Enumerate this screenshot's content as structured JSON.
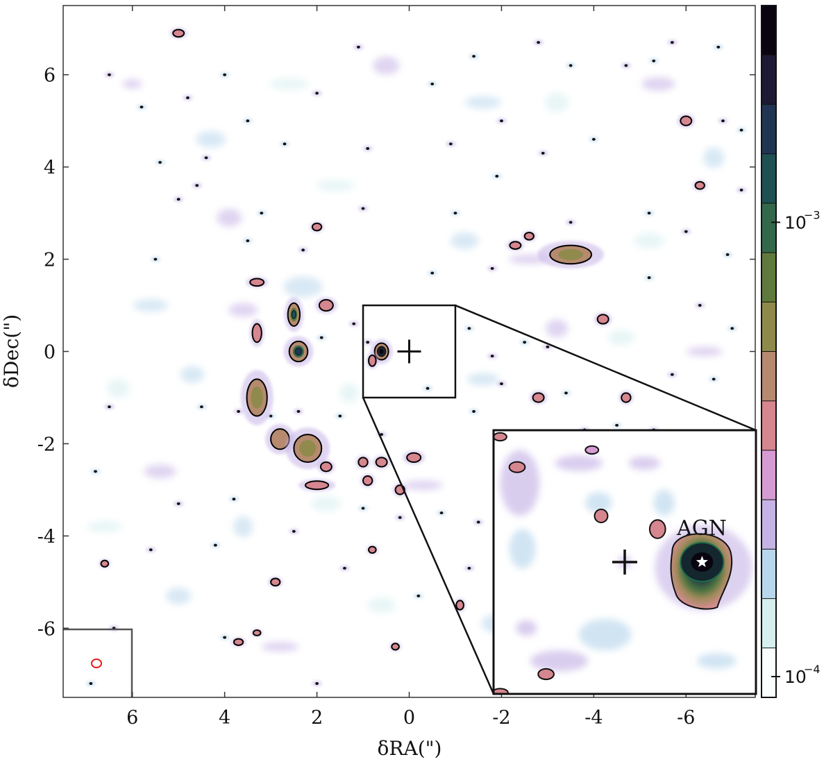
{
  "chart_data": {
    "type": "heatmap",
    "title": "",
    "xlabel": "δRA(\")",
    "ylabel": "δDec(\")",
    "xlim": [
      7.5,
      -7.5
    ],
    "ylim": [
      -7.5,
      7.5
    ],
    "x_ticks": [
      6,
      4,
      2,
      0,
      -2,
      -4,
      -6
    ],
    "x_tick_labels": [
      "6",
      "4",
      "2",
      "0",
      "-2",
      "-4",
      "-6"
    ],
    "y_ticks": [
      6,
      4,
      2,
      0,
      -2,
      -4,
      -6
    ],
    "y_tick_labels": [
      "6",
      "4",
      "2",
      "0",
      "-2",
      "-4",
      "-6"
    ],
    "grid": false,
    "colorbar": {
      "scale": "log",
      "range": [
        9e-05,
        0.003
      ],
      "ticks": [
        0.0001,
        0.001
      ],
      "tick_base": [
        "10",
        "10"
      ],
      "tick_exponents": [
        "−4",
        "−3"
      ],
      "levels": 12,
      "colors": [
        "#fbfefe",
        "#d6eeee",
        "#b9d7ec",
        "#c6b3e6",
        "#d79bd3",
        "#d6868f",
        "#b58a6e",
        "#8f8a4b",
        "#5f7a3c",
        "#34684a",
        "#1f5052",
        "#213553",
        "#1d1a33",
        "#0a0410"
      ]
    },
    "contour_color": "#000000",
    "center_marker": {
      "x": 0,
      "y": 0,
      "symbol": "+"
    },
    "beam": {
      "color": "#e51b1b"
    },
    "zoom_box": {
      "x_range": [
        1,
        -1
      ],
      "y_range": [
        -1,
        1
      ]
    },
    "inset": {
      "annotation": "AGN",
      "agn_marker": {
        "symbol": "star",
        "color": "#ffffff"
      }
    },
    "sources": [
      {
        "x": 0.6,
        "y": 0.0,
        "rx": 0.15,
        "ry": 0.18,
        "level": 12
      },
      {
        "x": 2.5,
        "y": 0.8,
        "rx": 0.13,
        "ry": 0.25,
        "level": 8
      },
      {
        "x": 2.4,
        "y": 0.0,
        "rx": 0.2,
        "ry": 0.22,
        "level": 9
      },
      {
        "x": 3.3,
        "y": -1.0,
        "rx": 0.22,
        "ry": 0.4,
        "level": 7
      },
      {
        "x": 2.8,
        "y": -1.9,
        "rx": 0.2,
        "ry": 0.22,
        "level": 6
      },
      {
        "x": 2.2,
        "y": -2.1,
        "rx": 0.3,
        "ry": 0.3,
        "level": 7
      },
      {
        "x": -3.5,
        "y": 2.1,
        "rx": 0.45,
        "ry": 0.2,
        "level": 7
      },
      {
        "x": 3.3,
        "y": 0.4,
        "rx": 0.1,
        "ry": 0.2,
        "level": 5
      },
      {
        "x": 3.3,
        "y": 1.5,
        "rx": 0.15,
        "ry": 0.08,
        "level": 5
      },
      {
        "x": -2.3,
        "y": 2.3,
        "rx": 0.12,
        "ry": 0.08,
        "level": 5
      },
      {
        "x": -2.6,
        "y": 2.5,
        "rx": 0.1,
        "ry": 0.08,
        "level": 5
      },
      {
        "x": -4.2,
        "y": 0.7,
        "rx": 0.12,
        "ry": 0.1,
        "level": 5
      },
      {
        "x": -4.7,
        "y": -1.0,
        "rx": 0.1,
        "ry": 0.1,
        "level": 5
      },
      {
        "x": -2.8,
        "y": -1.0,
        "rx": 0.12,
        "ry": 0.1,
        "level": 5
      },
      {
        "x": -0.1,
        "y": -2.3,
        "rx": 0.15,
        "ry": 0.1,
        "level": 5
      },
      {
        "x": 0.6,
        "y": -2.4,
        "rx": 0.12,
        "ry": 0.1,
        "level": 5
      },
      {
        "x": 1.0,
        "y": -2.4,
        "rx": 0.1,
        "ry": 0.1,
        "level": 5
      },
      {
        "x": 2.0,
        "y": -2.9,
        "rx": 0.25,
        "ry": 0.09,
        "level": 5
      },
      {
        "x": 1.8,
        "y": -2.5,
        "rx": 0.12,
        "ry": 0.1,
        "level": 5
      },
      {
        "x": 0.9,
        "y": -2.8,
        "rx": 0.1,
        "ry": 0.1,
        "level": 5
      },
      {
        "x": 0.2,
        "y": -3.0,
        "rx": 0.1,
        "ry": 0.1,
        "level": 5
      },
      {
        "x": 1.8,
        "y": 1.0,
        "rx": 0.15,
        "ry": 0.12,
        "level": 5
      },
      {
        "x": 5.0,
        "y": 6.9,
        "rx": 0.12,
        "ry": 0.08,
        "level": 5
      },
      {
        "x": -6.0,
        "y": 5.0,
        "rx": 0.12,
        "ry": 0.1,
        "level": 5
      },
      {
        "x": -6.3,
        "y": 3.6,
        "rx": 0.1,
        "ry": 0.08,
        "level": 5
      },
      {
        "x": 2.0,
        "y": 2.7,
        "rx": 0.1,
        "ry": 0.08,
        "level": 5
      },
      {
        "x": 0.8,
        "y": -0.2,
        "rx": 0.08,
        "ry": 0.12,
        "level": 5
      },
      {
        "x": -1.1,
        "y": -5.5,
        "rx": 0.08,
        "ry": 0.1,
        "level": 5
      },
      {
        "x": 2.9,
        "y": -5.0,
        "rx": 0.1,
        "ry": 0.08,
        "level": 5
      },
      {
        "x": 3.7,
        "y": -6.3,
        "rx": 0.1,
        "ry": 0.07,
        "level": 5
      },
      {
        "x": 3.3,
        "y": -6.1,
        "rx": 0.08,
        "ry": 0.06,
        "level": 5
      },
      {
        "x": 0.8,
        "y": -4.3,
        "rx": 0.08,
        "ry": 0.07,
        "level": 5
      },
      {
        "x": 0.3,
        "y": -6.4,
        "rx": 0.08,
        "ry": 0.07,
        "level": 5
      },
      {
        "x": -6.8,
        "y": -4.7,
        "rx": 0.1,
        "ry": 0.08,
        "level": 5
      },
      {
        "x": 6.6,
        "y": -4.6,
        "rx": 0.08,
        "ry": 0.07,
        "level": 5
      }
    ],
    "specks": [
      [
        6.5,
        6.0
      ],
      [
        5.8,
        5.3
      ],
      [
        4.8,
        5.5
      ],
      [
        3.5,
        5.0
      ],
      [
        2.0,
        5.6
      ],
      [
        -0.5,
        5.8
      ],
      [
        -2.0,
        5.0
      ],
      [
        -3.5,
        6.2
      ],
      [
        -4.7,
        6.2
      ],
      [
        -5.3,
        6.3
      ],
      [
        -5.7,
        6.7
      ],
      [
        -6.7,
        6.6
      ],
      [
        -6.8,
        5.0
      ],
      [
        -7.2,
        4.8
      ],
      [
        -7.2,
        3.5
      ],
      [
        -5.2,
        3.0
      ],
      [
        -3.5,
        2.8
      ],
      [
        -1.0,
        3.0
      ],
      [
        1.0,
        3.1
      ],
      [
        3.2,
        3.0
      ],
      [
        4.6,
        3.6
      ],
      [
        5.5,
        2.0
      ],
      [
        5.0,
        3.3
      ],
      [
        3.5,
        2.4
      ],
      [
        2.3,
        2.2
      ],
      [
        -0.5,
        1.7
      ],
      [
        -1.8,
        1.8
      ],
      [
        -5.2,
        1.6
      ],
      [
        -6.3,
        1.0
      ],
      [
        -7.0,
        0.5
      ],
      [
        -5.7,
        -0.5
      ],
      [
        -6.6,
        -0.6
      ],
      [
        -5.3,
        -1.7
      ],
      [
        -4.5,
        -1.6
      ],
      [
        -3.8,
        -1.7
      ],
      [
        -3.4,
        -0.9
      ],
      [
        -2.0,
        -0.7
      ],
      [
        -1.4,
        -1.3
      ],
      [
        0.6,
        -1.8
      ],
      [
        1.5,
        -1.4
      ],
      [
        2.4,
        -1.3
      ],
      [
        3.0,
        -1.4
      ],
      [
        3.7,
        -1.3
      ],
      [
        4.5,
        -1.2
      ],
      [
        6.5,
        -1.2
      ],
      [
        6.8,
        -2.6
      ],
      [
        5.0,
        -3.3
      ],
      [
        4.2,
        -4.2
      ],
      [
        1.4,
        -4.7
      ],
      [
        -0.2,
        -5.3
      ],
      [
        -1.3,
        -4.7
      ],
      [
        -3.0,
        -5.7
      ],
      [
        -5.0,
        -5.8
      ],
      [
        -6.2,
        -6.8
      ],
      [
        -4.2,
        -6.8
      ],
      [
        -2.0,
        -7.0
      ],
      [
        2.0,
        -7.2
      ],
      [
        4.0,
        -6.2
      ],
      [
        6.4,
        -6.0
      ],
      [
        6.9,
        -7.2
      ],
      [
        -0.9,
        4.5
      ],
      [
        -1.9,
        3.8
      ],
      [
        0.9,
        4.4
      ],
      [
        2.7,
        4.5
      ],
      [
        4.4,
        4.2
      ],
      [
        5.4,
        4.1
      ],
      [
        -2.9,
        4.3
      ],
      [
        -4.0,
        4.6
      ],
      [
        -6.0,
        2.6
      ],
      [
        -6.9,
        2.1
      ],
      [
        -4.2,
        -3.3
      ],
      [
        -2.8,
        -3.2
      ],
      [
        -1.5,
        -3.7
      ],
      [
        -0.7,
        -3.5
      ],
      [
        0.2,
        -3.6
      ],
      [
        1.0,
        -3.4
      ],
      [
        2.5,
        -3.9
      ],
      [
        3.8,
        -3.2
      ],
      [
        5.6,
        -4.3
      ],
      [
        4.0,
        6.0
      ],
      [
        1.1,
        6.6
      ],
      [
        -1.4,
        6.4
      ],
      [
        -2.8,
        6.7
      ],
      [
        -0.4,
        -0.8
      ],
      [
        1.2,
        0.6
      ],
      [
        1.9,
        0.3
      ],
      [
        0.9,
        0.2
      ],
      [
        -1.3,
        0.5
      ],
      [
        -1.8,
        -0.1
      ],
      [
        -2.5,
        0.2
      ],
      [
        -3.0,
        0.1
      ]
    ],
    "haze": [
      [
        6.0,
        5.8
      ],
      [
        4.3,
        4.6
      ],
      [
        2.6,
        5.8
      ],
      [
        0.5,
        6.2
      ],
      [
        -1.6,
        5.4
      ],
      [
        -3.2,
        5.4
      ],
      [
        -5.4,
        5.8
      ],
      [
        -6.6,
        4.2
      ],
      [
        -5.2,
        2.4
      ],
      [
        -2.6,
        2.0
      ],
      [
        -1.2,
        2.4
      ],
      [
        1.6,
        3.6
      ],
      [
        3.9,
        2.9
      ],
      [
        5.6,
        1.0
      ],
      [
        6.3,
        -0.8
      ],
      [
        5.4,
        -2.6
      ],
      [
        3.6,
        -3.8
      ],
      [
        1.8,
        -3.3
      ],
      [
        -0.3,
        -2.9
      ],
      [
        -2.3,
        -3.3
      ],
      [
        -4.0,
        -2.4
      ],
      [
        -5.8,
        -2.4
      ],
      [
        -6.9,
        -3.5
      ],
      [
        -6.2,
        -5.2
      ],
      [
        -4.3,
        -5.4
      ],
      [
        -2.0,
        -5.9
      ],
      [
        0.6,
        -5.5
      ],
      [
        2.8,
        -6.4
      ],
      [
        5.0,
        -5.3
      ],
      [
        6.6,
        -3.8
      ],
      [
        -3.2,
        0.5
      ],
      [
        -1.6,
        -0.6
      ],
      [
        1.3,
        -0.9
      ],
      [
        3.6,
        0.9
      ],
      [
        2.3,
        1.4
      ],
      [
        -4.6,
        0.3
      ],
      [
        -6.4,
        0.0
      ],
      [
        4.7,
        -0.5
      ]
    ],
    "inset_blobs": [
      {
        "x": -0.25,
        "y": 0.25,
        "rx": 0.06,
        "ry": 0.07,
        "level": 5
      },
      {
        "x": 0.18,
        "y": 0.35,
        "rx": 0.05,
        "ry": 0.05,
        "level": 5
      },
      {
        "x": 0.82,
        "y": 0.72,
        "rx": 0.06,
        "ry": 0.04,
        "level": 5
      },
      {
        "x": 0.6,
        "y": -0.85,
        "rx": 0.06,
        "ry": 0.04,
        "level": 5
      },
      {
        "x": 0.95,
        "y": 0.95,
        "rx": 0.05,
        "ry": 0.03,
        "level": 5
      },
      {
        "x": 0.95,
        "y": -0.99,
        "rx": 0.06,
        "ry": 0.03,
        "level": 5
      },
      {
        "x": 0.25,
        "y": 0.85,
        "rx": 0.05,
        "ry": 0.03,
        "level": 4
      }
    ]
  }
}
